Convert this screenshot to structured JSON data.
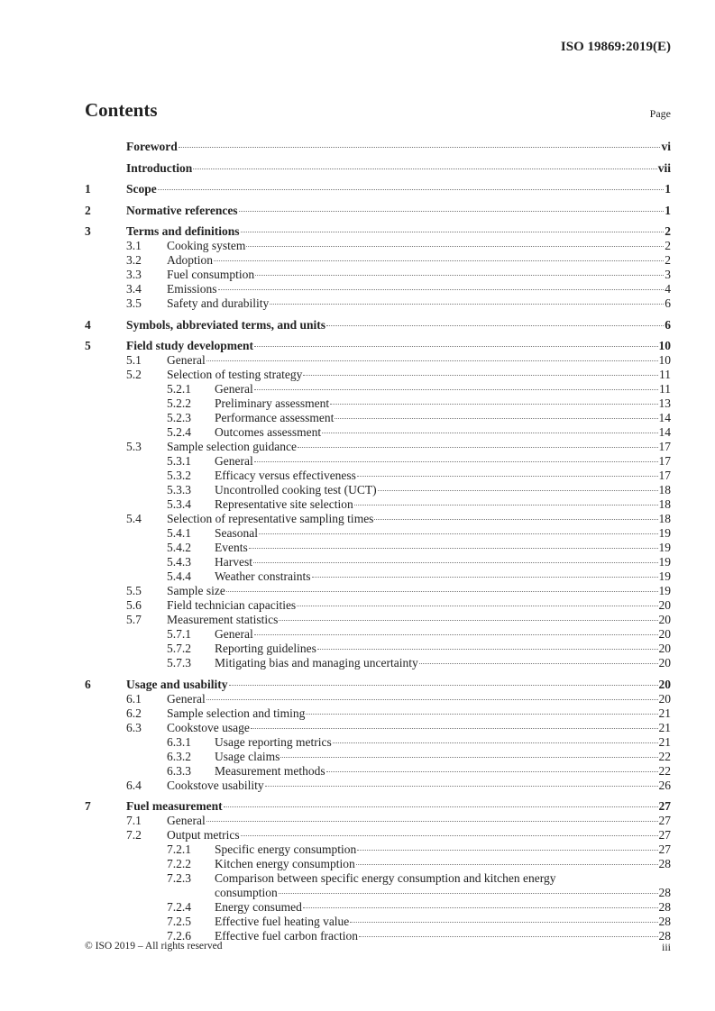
{
  "header": {
    "doc_id": "ISO 19869:2019(E)"
  },
  "contents_title": "Contents",
  "page_label": "Page",
  "entries": [
    {
      "level": 1,
      "num": "",
      "title": "Foreword",
      "page": "vi"
    },
    {
      "level": 1,
      "num": "",
      "title": "Introduction",
      "page": "vii"
    },
    {
      "level": 1,
      "num": "1",
      "title": "Scope",
      "page": "1"
    },
    {
      "level": 1,
      "num": "2",
      "title": "Normative references",
      "page": "1"
    },
    {
      "level": 1,
      "num": "3",
      "title": "Terms and definitions",
      "page": "2"
    },
    {
      "level": 2,
      "num": "3.1",
      "title": "Cooking system",
      "page": "2"
    },
    {
      "level": 2,
      "num": "3.2",
      "title": "Adoption",
      "page": "2"
    },
    {
      "level": 2,
      "num": "3.3",
      "title": "Fuel consumption",
      "page": "3"
    },
    {
      "level": 2,
      "num": "3.4",
      "title": "Emissions",
      "page": "4"
    },
    {
      "level": 2,
      "num": "3.5",
      "title": "Safety and durability",
      "page": "6"
    },
    {
      "level": 1,
      "num": "4",
      "title": "Symbols, abbreviated terms, and units",
      "page": "6"
    },
    {
      "level": 1,
      "num": "5",
      "title": "Field study development",
      "page": "10"
    },
    {
      "level": 2,
      "num": "5.1",
      "title": "General",
      "page": "10"
    },
    {
      "level": 2,
      "num": "5.2",
      "title": "Selection of testing strategy",
      "page": "11"
    },
    {
      "level": 3,
      "num": "5.2.1",
      "title": "General",
      "page": "11"
    },
    {
      "level": 3,
      "num": "5.2.2",
      "title": "Preliminary assessment",
      "page": "13"
    },
    {
      "level": 3,
      "num": "5.2.3",
      "title": "Performance assessment",
      "page": "14"
    },
    {
      "level": 3,
      "num": "5.2.4",
      "title": "Outcomes assessment",
      "page": "14"
    },
    {
      "level": 2,
      "num": "5.3",
      "title": "Sample selection guidance",
      "page": "17"
    },
    {
      "level": 3,
      "num": "5.3.1",
      "title": "General",
      "page": "17"
    },
    {
      "level": 3,
      "num": "5.3.2",
      "title": "Efficacy versus effectiveness",
      "page": "17"
    },
    {
      "level": 3,
      "num": "5.3.3",
      "title": "Uncontrolled cooking test (UCT)",
      "page": "18"
    },
    {
      "level": 3,
      "num": "5.3.4",
      "title": "Representative site selection",
      "page": "18"
    },
    {
      "level": 2,
      "num": "5.4",
      "title": "Selection of representative sampling times",
      "page": "18"
    },
    {
      "level": 3,
      "num": "5.4.1",
      "title": "Seasonal",
      "page": "19"
    },
    {
      "level": 3,
      "num": "5.4.2",
      "title": "Events",
      "page": "19"
    },
    {
      "level": 3,
      "num": "5.4.3",
      "title": "Harvest",
      "page": "19"
    },
    {
      "level": 3,
      "num": "5.4.4",
      "title": "Weather constraints",
      "page": "19"
    },
    {
      "level": 2,
      "num": "5.5",
      "title": "Sample size",
      "page": "19"
    },
    {
      "level": 2,
      "num": "5.6",
      "title": "Field technician capacities",
      "page": "20"
    },
    {
      "level": 2,
      "num": "5.7",
      "title": "Measurement statistics",
      "page": "20"
    },
    {
      "level": 3,
      "num": "5.7.1",
      "title": "General",
      "page": "20"
    },
    {
      "level": 3,
      "num": "5.7.2",
      "title": "Reporting guidelines",
      "page": "20"
    },
    {
      "level": 3,
      "num": "5.7.3",
      "title": "Mitigating bias and managing uncertainty",
      "page": "20"
    },
    {
      "level": 1,
      "num": "6",
      "title": "Usage and usability",
      "page": "20"
    },
    {
      "level": 2,
      "num": "6.1",
      "title": "General",
      "page": "20"
    },
    {
      "level": 2,
      "num": "6.2",
      "title": "Sample selection and timing",
      "page": "21"
    },
    {
      "level": 2,
      "num": "6.3",
      "title": "Cookstove usage",
      "page": "21"
    },
    {
      "level": 3,
      "num": "6.3.1",
      "title": "Usage reporting metrics",
      "page": "21"
    },
    {
      "level": 3,
      "num": "6.3.2",
      "title": "Usage claims",
      "page": "22"
    },
    {
      "level": 3,
      "num": "6.3.3",
      "title": "Measurement methods",
      "page": "22"
    },
    {
      "level": 2,
      "num": "6.4",
      "title": "Cookstove usability",
      "page": "26"
    },
    {
      "level": 1,
      "num": "7",
      "title": "Fuel measurement",
      "page": "27"
    },
    {
      "level": 2,
      "num": "7.1",
      "title": "General",
      "page": "27"
    },
    {
      "level": 2,
      "num": "7.2",
      "title": "Output metrics",
      "page": "27"
    },
    {
      "level": 3,
      "num": "7.2.1",
      "title": "Specific energy consumption",
      "page": "27"
    },
    {
      "level": 3,
      "num": "7.2.2",
      "title": "Kitchen energy consumption",
      "page": "28"
    },
    {
      "level": 3,
      "num": "7.2.3",
      "title": "Comparison between specific energy consumption and kitchen energy",
      "title_cont": "consumption",
      "page": "28"
    },
    {
      "level": 3,
      "num": "7.2.4",
      "title": "Energy consumed",
      "page": "28"
    },
    {
      "level": 3,
      "num": "7.2.5",
      "title": "Effective fuel heating value",
      "page": "28"
    },
    {
      "level": 3,
      "num": "7.2.6",
      "title": "Effective fuel carbon fraction",
      "page": "28"
    }
  ],
  "footer": {
    "copyright": "© ISO 2019 – All rights reserved",
    "page": "iii"
  }
}
